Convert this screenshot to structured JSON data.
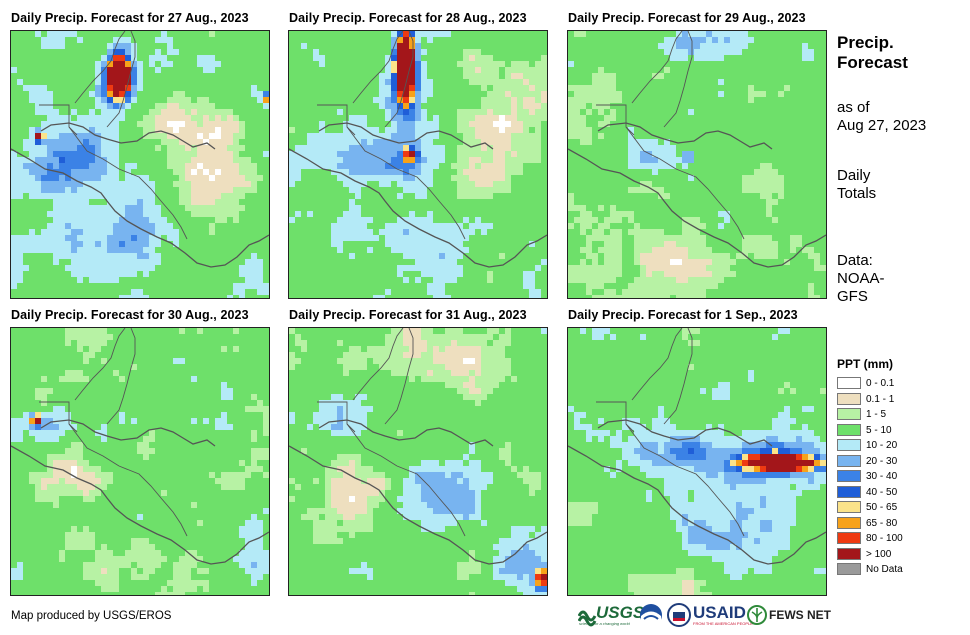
{
  "panels": [
    {
      "title": "Daily Precip. Forecast for 27 Aug., 2023",
      "pattern": "day1"
    },
    {
      "title": "Daily Precip. Forecast for 28 Aug., 2023",
      "pattern": "day2"
    },
    {
      "title": "Daily Precip. Forecast for 29 Aug., 2023",
      "pattern": "day3"
    },
    {
      "title": "Daily Precip. Forecast for 30 Aug., 2023",
      "pattern": "day4"
    },
    {
      "title": "Daily Precip. Forecast for 31 Aug., 2023",
      "pattern": "day5"
    },
    {
      "title": "Daily Precip. Forecast for 1 Sep., 2023",
      "pattern": "day6"
    }
  ],
  "sidebar": {
    "title_line1": "Precip.",
    "title_line2": "Forecast",
    "asof_line1": "as of",
    "asof_line2": "Aug 27, 2023",
    "daily_line1": "Daily",
    "daily_line2": "Totals",
    "data_line1": "Data:",
    "data_line2": "NOAA-",
    "data_line3": "GFS"
  },
  "legend": {
    "title": "PPT (mm)",
    "items": [
      {
        "label": "0 - 0.1",
        "color": "#ffffff"
      },
      {
        "label": "0.1 - 1",
        "color": "#eedfbf"
      },
      {
        "label": "1 - 5",
        "color": "#b7f2a4"
      },
      {
        "label": "5 - 10",
        "color": "#6ee06a"
      },
      {
        "label": "10 - 20",
        "color": "#b4eaf7"
      },
      {
        "label": "20 - 30",
        "color": "#78b4f0"
      },
      {
        "label": "30 - 40",
        "color": "#3b82e6"
      },
      {
        "label": "40 - 50",
        "color": "#1f5ed8"
      },
      {
        "label": "50 - 65",
        "color": "#fbe38a"
      },
      {
        "label": "65 - 80",
        "color": "#f7a21a"
      },
      {
        "label": "80 - 100",
        "color": "#ee3a12"
      },
      {
        "label": "> 100",
        "color": "#a3161a"
      },
      {
        "label": "No Data",
        "color": "#9a9a9a"
      }
    ]
  },
  "footer": {
    "credit": "Map produced by USGS/EROS",
    "logo_usgs": "USGS",
    "logo_usgs_tagline": "science for a changing world",
    "logo_usaid": "USAID",
    "logo_usaid_tagline": "FROM THE AMERICAN PEOPLE",
    "logo_fews": "FEWS NET"
  }
}
